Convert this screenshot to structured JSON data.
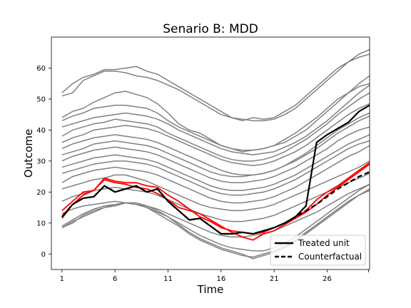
{
  "chart_data": {
    "type": "line",
    "title": "Senario B: MDD",
    "xlabel": "Time",
    "ylabel": "Outcome",
    "xlim": [
      0,
      30
    ],
    "ylim": [
      -5,
      70
    ],
    "xticks": [
      1,
      6,
      11,
      16,
      21,
      26
    ],
    "yticks": [
      0,
      10,
      20,
      30,
      40,
      50,
      60
    ],
    "grid": false,
    "legend_position": "lower-right",
    "legend": [
      {
        "label": "Treated unit",
        "style": "solid",
        "color": "#000000"
      },
      {
        "label": "Counterfactual",
        "style": "dashed",
        "color": "#000000"
      }
    ],
    "control_color": "#808080",
    "highlight_color": "#ff0000",
    "x": [
      1,
      2,
      3,
      4,
      5,
      6,
      7,
      8,
      9,
      10,
      11,
      12,
      13,
      14,
      15,
      16,
      17,
      18,
      19,
      20,
      21,
      22,
      23,
      24,
      25,
      26,
      27,
      28,
      29,
      30
    ],
    "controls": [
      [
        52,
        55,
        57,
        58,
        59.5,
        59.5,
        60,
        60.5,
        59,
        58,
        56,
        54,
        52,
        50,
        48,
        46,
        44,
        43.5,
        43,
        43,
        43.5,
        45,
        47,
        50,
        53,
        56,
        59,
        62,
        64.5,
        66
      ],
      [
        51,
        52,
        56,
        57.5,
        59,
        59,
        58.5,
        57.5,
        57,
        56,
        54.5,
        53,
        51,
        49,
        47,
        45,
        44,
        43,
        44,
        43.5,
        44,
        46,
        48,
        51,
        54,
        57,
        60,
        62,
        63.5,
        64.5
      ],
      [
        44,
        46,
        47,
        49,
        50.5,
        52,
        52.5,
        51.5,
        50.5,
        48.5,
        45.5,
        42,
        40,
        39,
        37,
        35,
        34,
        33,
        33.5,
        34,
        35,
        36,
        38,
        40,
        43,
        46,
        49,
        52,
        55,
        57.5
      ],
      [
        43,
        44.5,
        45.5,
        47,
        47.5,
        48,
        48,
        47.5,
        47,
        45.5,
        43,
        41,
        39.5,
        38,
        36.5,
        35,
        34,
        33.5,
        33.5,
        34,
        35,
        37,
        39,
        41.5,
        44,
        47,
        50,
        52,
        54,
        55
      ],
      [
        41,
        42,
        43,
        44,
        44.5,
        45,
        45.5,
        45,
        44.5,
        43.5,
        42,
        40,
        38.5,
        37,
        35.5,
        34,
        33,
        32.5,
        32,
        32.5,
        33,
        34.5,
        36,
        38,
        40.5,
        43,
        46,
        49,
        52,
        54.5
      ],
      [
        38,
        40,
        41,
        42,
        42.5,
        43.5,
        43,
        42.5,
        42,
        41,
        39,
        37.5,
        36,
        34.5,
        33,
        31.5,
        30.5,
        30,
        30,
        30.5,
        31.5,
        33,
        35,
        37,
        39.5,
        42,
        45,
        47.5,
        50,
        52
      ],
      [
        36,
        37.5,
        38.5,
        40,
        40.5,
        41,
        41.5,
        41,
        40.5,
        39.5,
        38,
        36.5,
        35,
        33.5,
        32,
        30.5,
        29.5,
        29,
        28.5,
        29,
        30,
        31.5,
        33,
        35,
        37.5,
        40,
        42.5,
        45,
        47,
        48.5
      ],
      [
        34,
        35.5,
        36.5,
        37.5,
        38,
        38.5,
        38,
        37.5,
        37,
        36,
        34.5,
        33,
        31.5,
        30,
        28.5,
        27,
        26,
        25.5,
        25.5,
        26,
        27,
        28.5,
        30.5,
        32.5,
        35,
        37.5,
        40,
        42,
        44,
        45.5
      ],
      [
        32,
        33,
        34,
        35.5,
        36,
        36.5,
        36,
        35.5,
        35,
        34,
        32.5,
        31,
        29.5,
        28,
        26.5,
        25.5,
        25,
        25,
        25.5,
        26,
        27,
        28.5,
        30,
        32,
        34,
        36.5,
        39,
        41,
        43,
        44.5
      ],
      [
        30,
        31.5,
        32.5,
        33.5,
        34,
        34.5,
        34,
        33.5,
        33,
        32,
        30.5,
        29,
        27.5,
        26,
        24.5,
        23.5,
        23,
        23,
        23.5,
        24,
        25,
        26.5,
        28,
        30,
        32,
        34,
        36.5,
        38.5,
        40,
        41
      ],
      [
        28,
        29,
        30,
        31,
        31.5,
        32,
        31.5,
        31,
        30.5,
        29.5,
        28,
        26.5,
        25,
        23.5,
        22,
        21,
        20.5,
        20.5,
        21,
        21.5,
        22.5,
        24,
        25.5,
        27.5,
        29.5,
        31.5,
        33.5,
        35.5,
        37,
        38.5
      ],
      [
        26,
        27,
        28,
        29,
        29.5,
        30,
        30,
        29.5,
        29,
        28,
        26.5,
        25,
        23.5,
        22,
        20.5,
        19.5,
        19,
        19,
        19.5,
        20,
        21,
        22.5,
        24,
        26,
        28,
        30,
        32,
        34,
        35.5,
        36.5
      ],
      [
        23,
        25,
        26,
        27,
        27.5,
        28,
        27.5,
        27,
        26.5,
        25.5,
        24,
        22.5,
        21,
        19.5,
        18,
        17,
        16.5,
        16.5,
        17,
        17.5,
        18.5,
        20,
        21.5,
        23.5,
        25.5,
        27.5,
        29.5,
        31.5,
        33,
        35
      ],
      [
        21,
        22,
        23,
        24,
        24.5,
        25.5,
        25.5,
        24.5,
        23.5,
        22,
        20.5,
        19,
        17.5,
        16,
        15,
        14.5,
        14,
        14,
        14.5,
        15,
        16,
        17.5,
        19,
        20.5,
        22,
        23.5,
        25,
        26.5,
        28,
        30
      ],
      [
        17,
        18.5,
        19.5,
        20.5,
        21,
        21.5,
        21,
        20.5,
        20,
        19,
        17.5,
        16,
        14.5,
        13,
        12,
        11,
        10.5,
        10.5,
        11,
        11.5,
        12.5,
        14,
        15.5,
        17,
        18.5,
        20,
        21.5,
        23,
        24.5,
        26
      ],
      [
        13,
        14.5,
        15.5,
        16,
        16.5,
        17,
        16.5,
        16,
        15.5,
        14.5,
        13,
        11.5,
        10,
        8.5,
        7,
        6,
        5.5,
        5.5,
        6,
        6.5,
        7.5,
        9,
        10.5,
        12,
        13.5,
        15.5,
        17.5,
        19.5,
        21,
        22.5
      ],
      [
        9,
        11,
        13,
        14.5,
        15.5,
        16,
        16.5,
        16,
        15,
        13.5,
        12,
        10,
        8,
        6,
        4.5,
        3,
        2,
        1.5,
        1,
        1,
        2,
        3.5,
        5.5,
        8,
        10.5,
        13,
        15.5,
        18,
        20.5,
        22.5
      ],
      [
        8.5,
        10,
        12.5,
        14,
        15,
        15.5,
        16.5,
        16,
        15,
        13,
        11,
        9,
        6.5,
        4.5,
        3,
        1.5,
        0.5,
        -0.5,
        -1,
        0,
        1,
        2.5,
        4.5,
        7,
        9.5,
        12,
        14.5,
        17,
        19,
        21
      ],
      [
        8.5,
        10.5,
        12,
        13.5,
        15,
        16,
        16.5,
        16.5,
        15.5,
        14,
        12,
        9.5,
        7,
        5,
        3.5,
        2,
        1,
        0,
        -1.5,
        -0.5,
        0.5,
        2,
        4,
        6.5,
        9,
        11.5,
        14,
        16.5,
        19,
        20.5
      ]
    ],
    "highlighted": [
      [
        11.5,
        16,
        19,
        20.5,
        24.5,
        23.5,
        23,
        23,
        22,
        21.5,
        19,
        17,
        14.5,
        12,
        10.5,
        8.5,
        7.5,
        7,
        6.5,
        7,
        8.5,
        10,
        11.5,
        14,
        17.5,
        20,
        22,
        24.5,
        27,
        29.5
      ],
      [
        14,
        17,
        20,
        20.5,
        24,
        23,
        22.5,
        21.5,
        21,
        19.5,
        17.5,
        15,
        14,
        13,
        11,
        9,
        7,
        5.5,
        4.5,
        6.5,
        7.5,
        9.5,
        11.5,
        13.5,
        16,
        19,
        21.5,
        24,
        26.5,
        29
      ]
    ],
    "series": [
      {
        "name": "Treated unit",
        "values": [
          12,
          16,
          18,
          18.5,
          22,
          20,
          21,
          22,
          20,
          21,
          17,
          14,
          11,
          11.5,
          9,
          6.5,
          6.5,
          7,
          6.5,
          7.5,
          8.5,
          10,
          12,
          15.5,
          36,
          38.5,
          40.5,
          42.5,
          46,
          48
        ]
      },
      {
        "name": "Counterfactual",
        "values": [
          12,
          16,
          18,
          18.5,
          22,
          20,
          21,
          22,
          20,
          21,
          17,
          14,
          11,
          11.5,
          9,
          6.5,
          6.5,
          7,
          6.5,
          7.5,
          8.5,
          10,
          12,
          14,
          16,
          18.5,
          21,
          23,
          25,
          26.5
        ]
      }
    ]
  }
}
